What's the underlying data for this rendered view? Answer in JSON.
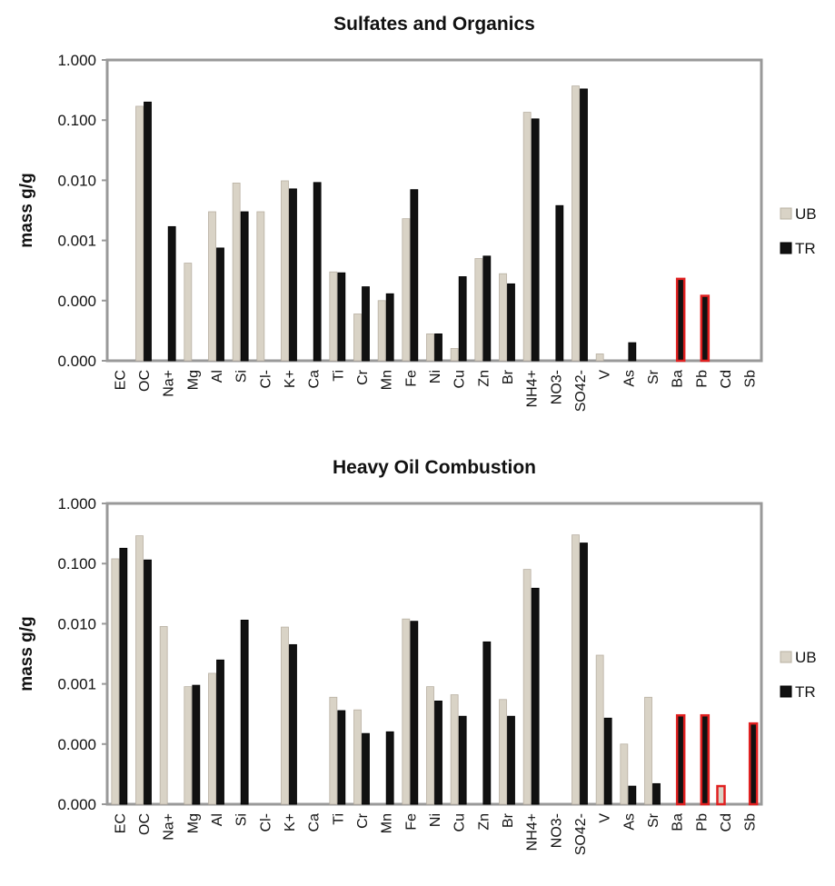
{
  "chart_data": [
    {
      "type": "bar",
      "title": "Sulfates and Organics",
      "ylabel": "mass g/g",
      "xlabel": "",
      "yscale": "log",
      "ylim": [
        1e-05,
        1
      ],
      "ytick_values": [
        1e-05,
        0.0001,
        0.001,
        0.01,
        0.1,
        1
      ],
      "ytick_labels": [
        "0.000",
        "0.000",
        "0.001",
        "0.010",
        "0.100",
        "1.000"
      ],
      "grid": false,
      "legend_position": "right",
      "categories": [
        "EC",
        "OC",
        "Na+",
        "Mg",
        "Al",
        "Si",
        "Cl-",
        "K+",
        "Ca",
        "Ti",
        "Cr",
        "Mn",
        "Fe",
        "Ni",
        "Cu",
        "Zn",
        "Br",
        "NH4+",
        "NO3-",
        "SO42-",
        "V",
        "As",
        "Sr",
        "Ba",
        "Pb",
        "Cd",
        "Sb"
      ],
      "highlight_categories": [
        "Ba",
        "Pb"
      ],
      "highlight_color": "#e02020",
      "series": [
        {
          "name": "UB",
          "color": "#d9d3c6",
          "values": [
            null,
            0.17,
            null,
            0.00042,
            0.003,
            0.009,
            0.003,
            0.0098,
            null,
            0.0003,
            6e-05,
            0.0001,
            0.0023,
            2.8e-05,
            1.6e-05,
            0.0005,
            0.00028,
            0.135,
            null,
            0.37,
            1.3e-05,
            null,
            1e-05,
            null,
            null,
            1e-05,
            1e-05
          ]
        },
        {
          "name": "TR",
          "color": "#111111",
          "values": [
            null,
            0.2,
            0.0017,
            null,
            0.00075,
            0.003,
            null,
            0.0072,
            0.0092,
            0.00029,
            0.00017,
            0.00013,
            0.007,
            2.8e-05,
            0.00025,
            0.00055,
            0.00019,
            0.105,
            0.0038,
            0.33,
            null,
            2e-05,
            null,
            0.00023,
            0.00012,
            null,
            null
          ]
        }
      ]
    },
    {
      "type": "bar",
      "title": "Heavy Oil Combustion",
      "ylabel": "mass g/g",
      "xlabel": "",
      "yscale": "log",
      "ylim": [
        1e-05,
        1
      ],
      "ytick_values": [
        1e-05,
        0.0001,
        0.001,
        0.01,
        0.1,
        1
      ],
      "ytick_labels": [
        "0.000",
        "0.000",
        "0.001",
        "0.010",
        "0.100",
        "1.000"
      ],
      "grid": false,
      "legend_position": "right",
      "categories": [
        "EC",
        "OC",
        "Na+",
        "Mg",
        "Al",
        "Si",
        "Cl-",
        "K+",
        "Ca",
        "Ti",
        "Cr",
        "Mn",
        "Fe",
        "Ni",
        "Cu",
        "Zn",
        "Br",
        "NH4+",
        "NO3-",
        "SO42-",
        "V",
        "As",
        "Sr",
        "Ba",
        "Pb",
        "Cd",
        "Sb"
      ],
      "highlight_categories": [
        "Ba",
        "Pb",
        "Cd",
        "Sb"
      ],
      "highlight_color": "#e02020",
      "series": [
        {
          "name": "UB",
          "color": "#d9d3c6",
          "values": [
            0.12,
            0.29,
            0.009,
            0.0009,
            0.0015,
            null,
            null,
            0.0088,
            null,
            0.0006,
            0.00037,
            null,
            0.012,
            0.0009,
            0.00066,
            null,
            0.00055,
            0.08,
            null,
            0.3,
            0.003,
            0.0001,
            0.0006,
            null,
            null,
            2e-05,
            null
          ]
        },
        {
          "name": "TR",
          "color": "#111111",
          "values": [
            0.18,
            0.115,
            null,
            0.00095,
            0.0025,
            0.0115,
            null,
            0.0045,
            null,
            0.00036,
            0.00015,
            0.00016,
            0.011,
            0.00052,
            0.00029,
            0.005,
            0.00029,
            0.039,
            null,
            0.22,
            0.00027,
            2e-05,
            2.2e-05,
            0.0003,
            0.0003,
            null,
            0.00022
          ]
        }
      ]
    }
  ]
}
